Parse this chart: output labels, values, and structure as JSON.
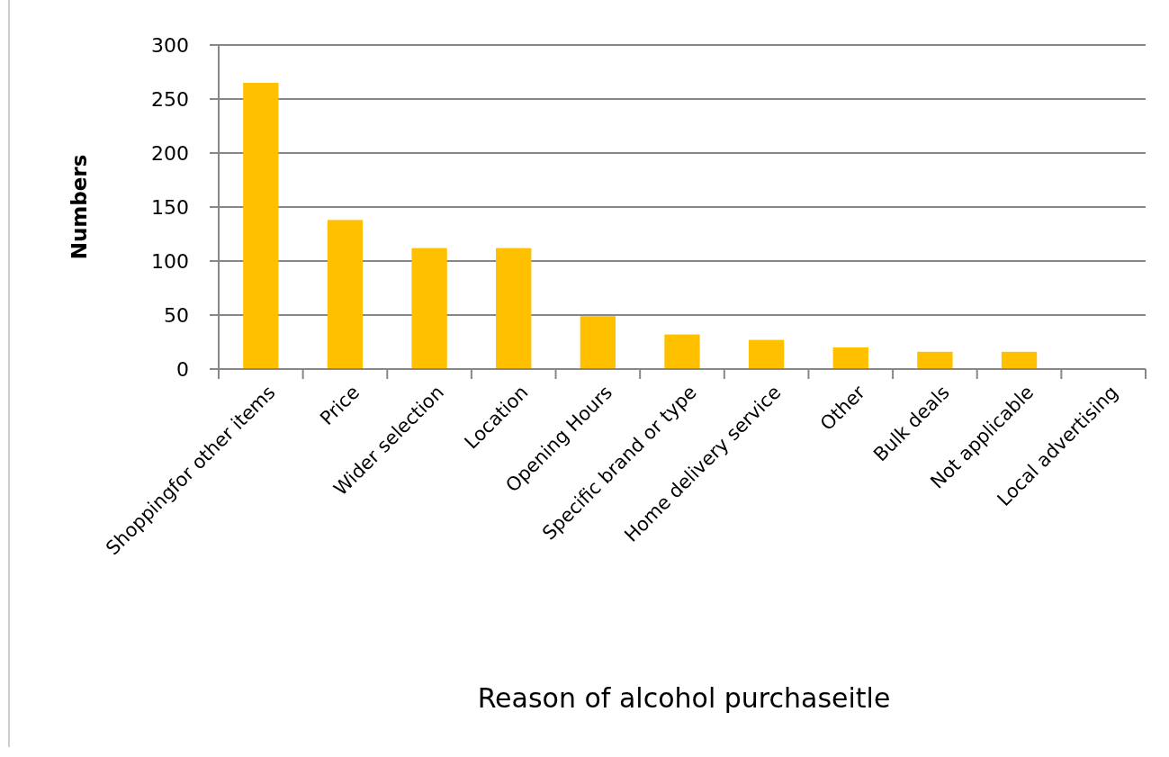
{
  "chart_data": {
    "type": "bar",
    "xlabel": "Reason of alcohol purchaseitle",
    "ylabel": "Numbers",
    "categories": [
      "Shoppingfor other items",
      "Price",
      "Wider selection",
      "Location",
      "Opening Hours",
      "Specific brand or type",
      "Home delivery service",
      "Other",
      "Bulk deals",
      "Not applicable",
      "Local advertising"
    ],
    "values": [
      265,
      138,
      112,
      112,
      49,
      32,
      27,
      20,
      16,
      16,
      0
    ],
    "color": "#ffc000",
    "ylim": [
      0,
      300
    ],
    "yticks": [
      0,
      50,
      100,
      150,
      200,
      250,
      300
    ],
    "grid": "y"
  }
}
